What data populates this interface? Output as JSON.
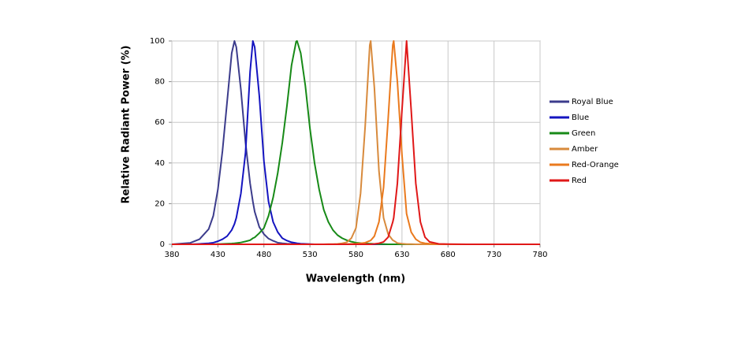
{
  "chart_data": {
    "type": "line",
    "xlabel": "Wavelength (nm)",
    "ylabel": "Relative Radiant Power (%)",
    "x": [
      380,
      400,
      410,
      420,
      425,
      430,
      435,
      440,
      445,
      448,
      450,
      455,
      460,
      465,
      468,
      470,
      475,
      480,
      485,
      490,
      495,
      500,
      505,
      510,
      515,
      516,
      520,
      525,
      530,
      535,
      540,
      545,
      550,
      555,
      560,
      565,
      570,
      575,
      580,
      585,
      590,
      595,
      596,
      600,
      605,
      610,
      615,
      620,
      621,
      625,
      630,
      635,
      640,
      645,
      650,
      655,
      660,
      670,
      680,
      700,
      780
    ],
    "series": [
      {
        "name": "Royal Blue",
        "color": "#3c3c8c",
        "values": [
          0,
          0.7,
          2.5,
          7.5,
          14,
          27,
          46,
          70,
          94,
          100,
          97,
          76,
          50,
          30,
          21,
          16,
          8.5,
          5,
          2.8,
          1.7,
          0.8,
          0.5,
          0.3,
          0.2,
          0.1,
          0.1,
          0,
          0,
          0,
          0,
          0,
          0,
          0,
          0,
          0,
          0,
          0,
          0,
          0,
          0,
          0,
          0,
          0,
          0,
          0,
          0,
          0,
          0,
          0,
          0,
          0,
          0,
          0,
          0,
          0,
          0,
          0,
          0,
          0,
          0,
          0
        ]
      },
      {
        "name": "Blue",
        "color": "#1414c0",
        "values": [
          0,
          0,
          0.2,
          0.5,
          0.8,
          1.5,
          2.5,
          4,
          7,
          10,
          13,
          25,
          45,
          85,
          100,
          97,
          73,
          41,
          21,
          11,
          6,
          3,
          1.8,
          1,
          0.6,
          0.5,
          0.3,
          0.2,
          0.1,
          0,
          0,
          0,
          0,
          0,
          0,
          0,
          0,
          0,
          0,
          0,
          0,
          0,
          0,
          0,
          0,
          0,
          0,
          0,
          0,
          0,
          0,
          0,
          0,
          0,
          0,
          0,
          0,
          0,
          0,
          0,
          0
        ]
      },
      {
        "name": "Green",
        "color": "#178a17",
        "values": [
          0,
          0,
          0,
          0,
          0,
          0.1,
          0.2,
          0.3,
          0.4,
          0.5,
          0.6,
          0.9,
          1.4,
          2,
          3,
          3.4,
          5.5,
          8,
          14,
          23,
          35,
          50,
          68,
          88,
          99.7,
          100,
          94,
          78,
          57,
          40,
          27,
          17,
          11,
          7,
          4.5,
          3,
          2,
          1.3,
          0.8,
          0.6,
          0.4,
          0.3,
          0.3,
          0.2,
          0.1,
          0.1,
          0,
          0,
          0,
          0,
          0,
          0,
          0,
          0,
          0,
          0,
          0,
          0,
          0,
          0,
          0
        ]
      },
      {
        "name": "Amber",
        "color": "#d88a3c",
        "values": [
          0,
          0,
          0,
          0,
          0,
          0,
          0,
          0,
          0,
          0,
          0,
          0,
          0,
          0,
          0,
          0,
          0,
          0,
          0,
          0,
          0,
          0,
          0,
          0,
          0,
          0,
          0,
          0,
          0,
          0,
          0,
          0,
          0.1,
          0.1,
          0.2,
          0.5,
          1,
          3,
          8,
          25,
          58,
          98,
          100,
          77,
          36,
          13,
          5,
          2,
          1.8,
          0.6,
          0.3,
          0.1,
          0.1,
          0,
          0,
          0,
          0,
          0,
          0,
          0,
          0
        ]
      },
      {
        "name": "Red-Orange",
        "color": "#ea7a1e",
        "values": [
          0,
          0,
          0,
          0,
          0,
          0,
          0,
          0,
          0,
          0,
          0,
          0,
          0,
          0,
          0,
          0,
          0,
          0,
          0,
          0,
          0,
          0,
          0,
          0,
          0,
          0,
          0,
          0,
          0,
          0,
          0,
          0,
          0,
          0,
          0,
          0,
          0.1,
          0.2,
          0.3,
          0.5,
          0.8,
          1.7,
          1.9,
          4,
          11,
          28,
          62,
          98,
          100,
          80,
          44,
          15,
          6,
          2.5,
          1,
          0.5,
          0.3,
          0.1,
          0,
          0,
          0
        ]
      },
      {
        "name": "Red",
        "color": "#e01818",
        "values": [
          0,
          0,
          0,
          0,
          0,
          0,
          0,
          0,
          0,
          0,
          0,
          0,
          0,
          0,
          0,
          0,
          0,
          0,
          0,
          0,
          0,
          0,
          0,
          0,
          0,
          0,
          0,
          0,
          0,
          0,
          0,
          0,
          0,
          0,
          0,
          0,
          0,
          0,
          0,
          0,
          0,
          0,
          0,
          0.2,
          0.5,
          1.2,
          3.5,
          11,
          13,
          30,
          66,
          100,
          66,
          30,
          11,
          3.5,
          1.2,
          0.2,
          0.1,
          0,
          0
        ]
      }
    ],
    "xlim": [
      380,
      780
    ],
    "xticks": [
      380,
      430,
      480,
      530,
      580,
      630,
      680,
      730,
      780
    ],
    "ylim": [
      0,
      100
    ],
    "yticks": [
      0,
      20,
      40,
      60,
      80,
      100
    ],
    "grid": true
  }
}
